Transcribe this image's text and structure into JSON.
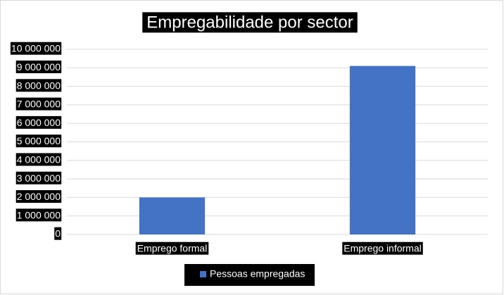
{
  "chart_data": {
    "type": "bar",
    "title": "Empregabilidade por sector",
    "categories": [
      "Emprego formal",
      "Emprego informal"
    ],
    "series": [
      {
        "name": "Pessoas empregadas",
        "color": "#4472c4",
        "values": [
          2000000,
          9100000
        ]
      }
    ],
    "ylim": [
      0,
      10000000
    ],
    "yticks": [
      0,
      {
        "value": 1000000,
        "label": "1 000 000"
      },
      {
        "value": 2000000,
        "label": "2 000 000"
      },
      {
        "value": 3000000,
        "label": "3 000 000"
      },
      {
        "value": 4000000,
        "label": "4 000 000"
      },
      {
        "value": 5000000,
        "label": "5 000 000"
      },
      {
        "value": 6000000,
        "label": "6 000 000"
      },
      {
        "value": 7000000,
        "label": "7 000 000"
      },
      {
        "value": 8000000,
        "label": "8 000 000"
      },
      {
        "value": 9000000,
        "label": "9 000 000"
      },
      {
        "value": 10000000,
        "label": "10 000 000"
      }
    ],
    "grid": true,
    "legend": "bottom"
  }
}
